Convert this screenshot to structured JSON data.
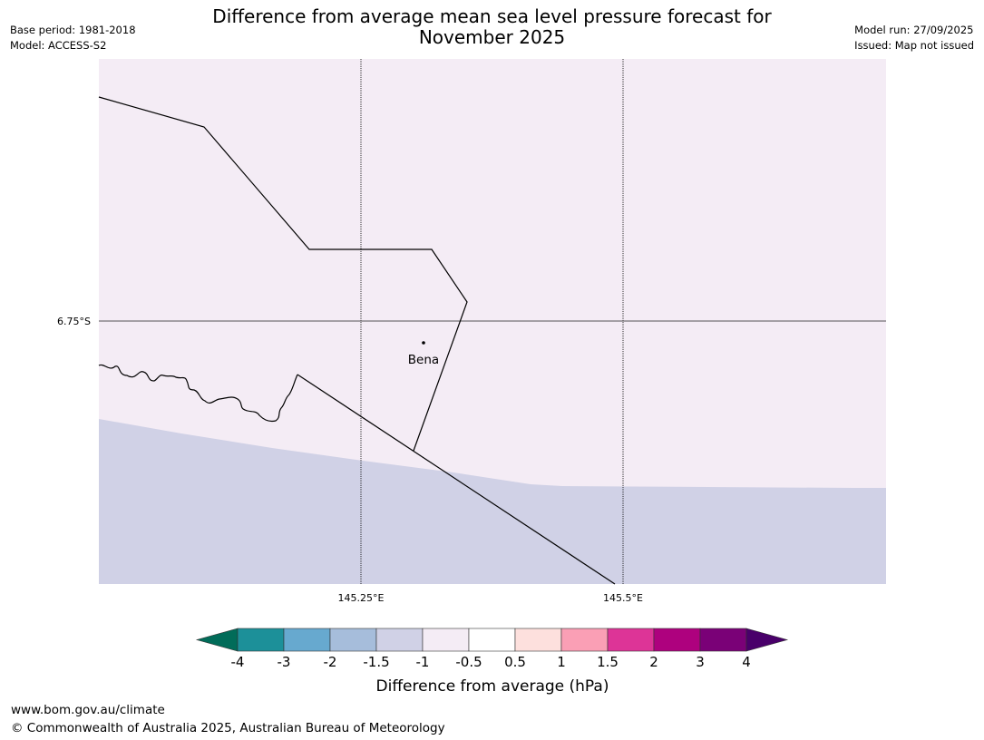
{
  "header": {
    "title_line1": "Difference from average mean sea level pressure forecast for",
    "title_line2": "November 2025",
    "base_period": "Base period: 1981-2018",
    "model": "Model: ACCESS-S2",
    "model_run": "Model run: 27/09/2025",
    "issued": "Issued: Map not issued"
  },
  "map": {
    "lat_label": "6.75°S",
    "lon_labels": [
      "145.25°E",
      "145.5°E"
    ],
    "place_name": "Bena",
    "colors": {
      "land_class": "#f4ecf5",
      "sea_class": "#d0d1e6",
      "border": "#000000",
      "gridline": "#555555"
    }
  },
  "legend": {
    "title": "Difference from average (hPa)",
    "ticks": [
      "-4",
      "-3",
      "-2",
      "-1.5",
      "-1",
      "-0.5",
      "0.5",
      "1",
      "1.5",
      "2",
      "3",
      "4"
    ],
    "colors": [
      "#016c59",
      "#1c9099",
      "#67a9cf",
      "#a6bddb",
      "#d0d1e6",
      "#f4ecf5",
      "#ffffff",
      "#fde0dd",
      "#fa9fb5",
      "#dd3497",
      "#ae017e",
      "#7a0177",
      "#49006a"
    ]
  },
  "footer": {
    "url": "www.bom.gov.au/climate",
    "copyright": "© Commonwealth of Australia 2025, Australian Bureau of Meteorology"
  }
}
